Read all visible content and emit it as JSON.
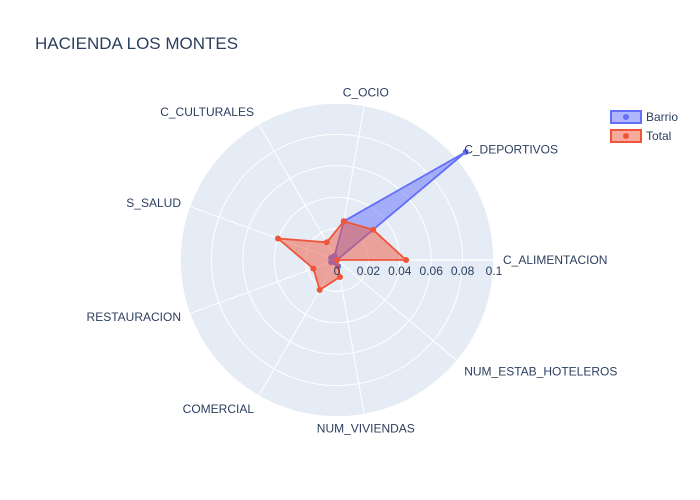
{
  "chart_data": {
    "type": "radar",
    "title": "HACIENDA LOS MONTES",
    "axes": [
      "C_ALIMENTACION",
      "C_DEPORTIVOS",
      "C_OCIO",
      "C_CULTURALES",
      "S_SALUD",
      "RESTAURACION",
      "COMERCIAL",
      "NUM_VIVIENDAS",
      "NUM_ESTAB_HOTELEROS"
    ],
    "radial_range": [
      0,
      0.1
    ],
    "radial_ticks": [
      "0",
      "0.02",
      "0.04",
      "0.06",
      "0.08",
      "0.1"
    ],
    "radial_tick_values": [
      0,
      0.02,
      0.04,
      0.06,
      0.08,
      0.1
    ],
    "legend_position": "top-right",
    "series": [
      {
        "name": "Barrio",
        "color": "#636efa",
        "values": [
          0.0,
          0.107,
          0.025,
          0.003,
          0.004,
          0.004,
          0.002,
          0.004,
          0.0
        ]
      },
      {
        "name": "Total",
        "color": "#ef553b",
        "values": [
          0.044,
          0.03,
          0.025,
          0.013,
          0.04,
          0.016,
          0.022,
          0.011,
          0.0
        ]
      }
    ]
  }
}
